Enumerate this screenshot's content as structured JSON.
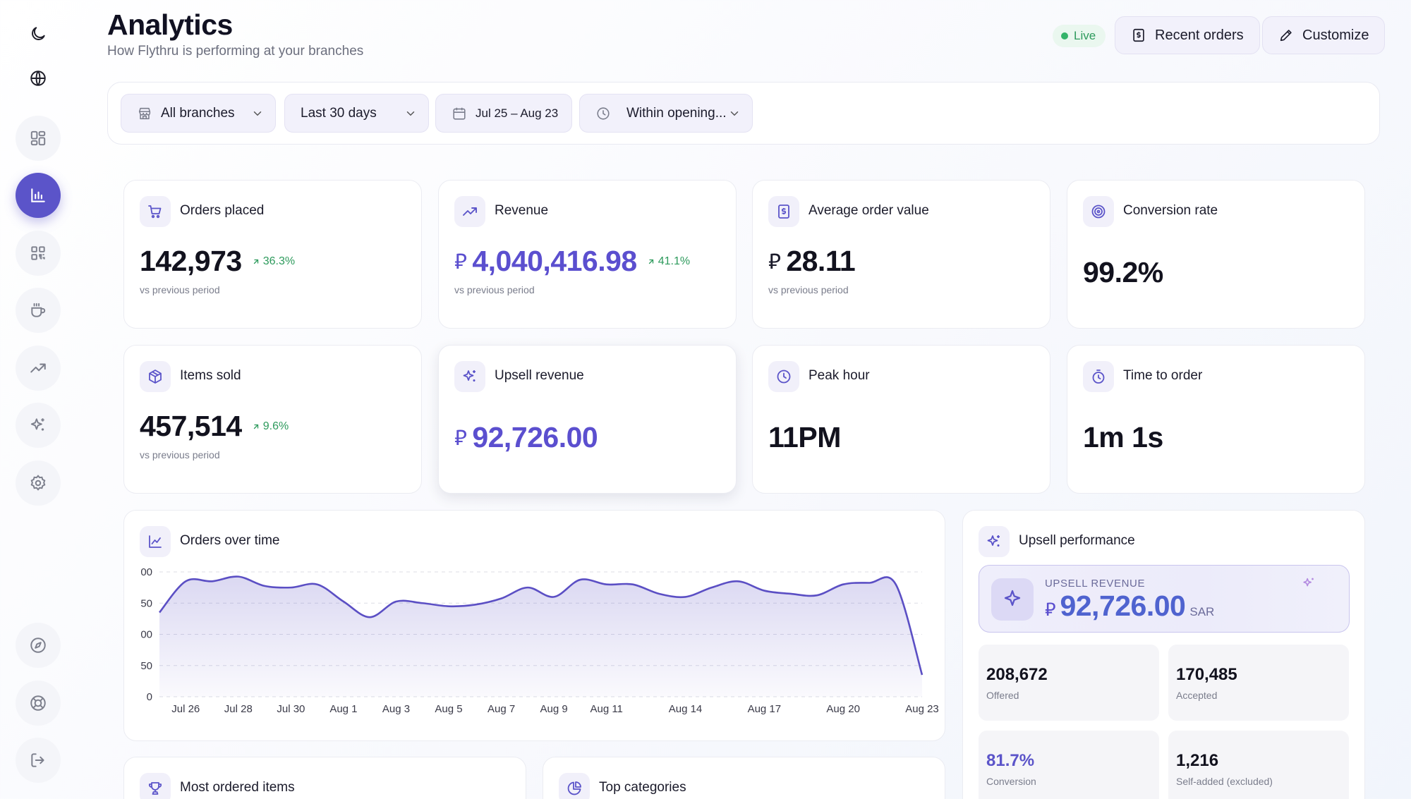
{
  "page": {
    "title": "Analytics",
    "subtitle": "How Flythru is performing at your branches"
  },
  "header": {
    "live_label": "Live",
    "recent_orders_label": "Recent orders",
    "customize_label": "Customize"
  },
  "sidebar": {
    "items": [
      {
        "icon": "moon-icon"
      },
      {
        "icon": "globe-icon"
      },
      {
        "icon": "dashboard-icon"
      },
      {
        "icon": "bar-chart-icon",
        "active": true
      },
      {
        "icon": "qr-code-icon"
      },
      {
        "icon": "coffee-cup-icon"
      },
      {
        "icon": "trending-up-icon"
      },
      {
        "icon": "sparkles-icon"
      },
      {
        "icon": "gear-icon"
      },
      {
        "icon": "compass-icon"
      },
      {
        "icon": "lifebuoy-icon"
      },
      {
        "icon": "logout-icon"
      }
    ]
  },
  "filters": {
    "branches": "All branches",
    "period": "Last 30 days",
    "date_range": "Jul 25 – Aug 23",
    "hours": "Within opening..."
  },
  "currency_symbol": "⃁",
  "stats": {
    "orders_placed": {
      "title": "Orders placed",
      "value": "142,973",
      "delta": "36.3%",
      "sub": "vs previous period"
    },
    "revenue": {
      "title": "Revenue",
      "value": "4,040,416.98",
      "delta": "41.1%",
      "sub": "vs previous period"
    },
    "avg_order_value": {
      "title": "Average order value",
      "value": "28.11",
      "sub": "vs previous period"
    },
    "conversion_rate": {
      "title": "Conversion rate",
      "value": "99.2%"
    },
    "items_sold": {
      "title": "Items sold",
      "value": "457,514",
      "delta": "9.6%",
      "sub": "vs previous period"
    },
    "upsell_revenue": {
      "title": "Upsell revenue",
      "value": "92,726.00"
    },
    "peak_hour": {
      "title": "Peak hour",
      "value": "11PM"
    },
    "time_to_order": {
      "title": "Time to order",
      "value": "1m 1s"
    }
  },
  "orders_chart": {
    "title": "Orders over time"
  },
  "upsell": {
    "title": "Upsell performance",
    "hero_label": "UPSELL REVENUE",
    "hero_value": "92,726.00",
    "hero_unit": "SAR",
    "offered": {
      "value": "208,672",
      "label": "Offered"
    },
    "accepted": {
      "value": "170,485",
      "label": "Accepted"
    },
    "conversion": {
      "value": "81.7%",
      "label": "Conversion"
    },
    "self_added": {
      "value": "1,216",
      "label": "Self-added (excluded)"
    }
  },
  "bottom_cards": {
    "most_ordered": "Most ordered items",
    "top_categories": "Top categories"
  },
  "chart_data": {
    "type": "area",
    "title": "Orders over time",
    "xlabel": "",
    "ylabel": "",
    "y_ticks": [
      "00",
      "50",
      "00",
      "50",
      "0"
    ],
    "x_tick_labels": [
      "Jul 26",
      "Jul 28",
      "Jul 30",
      "Aug 1",
      "Aug 3",
      "Aug 5",
      "Aug 7",
      "Aug 9",
      "Aug 11",
      "Aug 14",
      "Aug 17",
      "Aug 20",
      "Aug 23"
    ],
    "ylim": [
      0,
      4
    ],
    "grid": true,
    "color": "#5b4fc4",
    "series": [
      {
        "x": [
          "Jul 25",
          "Jul 26",
          "Jul 27",
          "Jul 28",
          "Jul 29",
          "Jul 30",
          "Jul 31",
          "Aug 1",
          "Aug 2",
          "Aug 3",
          "Aug 4",
          "Aug 5",
          "Aug 6",
          "Aug 7",
          "Aug 8",
          "Aug 9",
          "Aug 10",
          "Aug 11",
          "Aug 12",
          "Aug 13",
          "Aug 14",
          "Aug 15",
          "Aug 16",
          "Aug 17",
          "Aug 18",
          "Aug 19",
          "Aug 20",
          "Aug 21",
          "Aug 22",
          "Aug 23"
        ],
        "values": [
          2.7,
          3.7,
          3.7,
          3.85,
          3.55,
          3.5,
          3.6,
          3.05,
          2.55,
          3.05,
          3.0,
          2.9,
          2.95,
          3.15,
          3.5,
          3.2,
          3.75,
          3.6,
          3.6,
          3.3,
          3.2,
          3.5,
          3.7,
          3.4,
          3.3,
          3.25,
          3.6,
          3.65,
          3.6,
          0.7
        ]
      }
    ]
  }
}
